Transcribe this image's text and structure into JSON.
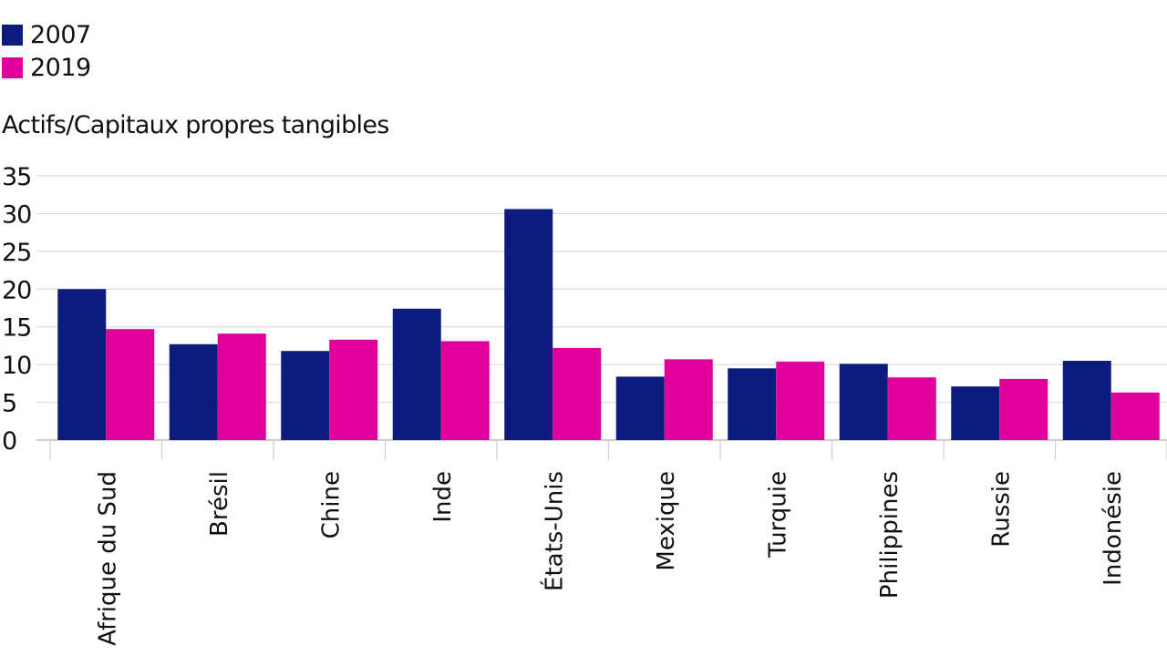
{
  "chart_data": {
    "type": "bar",
    "ylabel": "Actifs/Capitaux propres tangibles",
    "xlabel": "",
    "ylim": [
      0,
      35
    ],
    "yticks": [
      0,
      5,
      10,
      15,
      20,
      25,
      30,
      35
    ],
    "grid": true,
    "legend_position": "top-left",
    "categories": [
      "Afrique du Sud",
      "Brésil",
      "Chine",
      "Inde",
      "États-Unis",
      "Mexique",
      "Turquie",
      "Philippines",
      "Russie",
      "Indonésie"
    ],
    "series": [
      {
        "name": "2007",
        "color": "#0d1b7e",
        "values": [
          20.0,
          12.7,
          11.8,
          17.4,
          30.6,
          8.4,
          9.5,
          10.1,
          7.1,
          10.5
        ]
      },
      {
        "name": "2019",
        "color": "#e0009a",
        "values": [
          14.7,
          14.1,
          13.3,
          13.1,
          12.2,
          10.7,
          10.4,
          8.3,
          8.1,
          6.3
        ]
      }
    ]
  }
}
